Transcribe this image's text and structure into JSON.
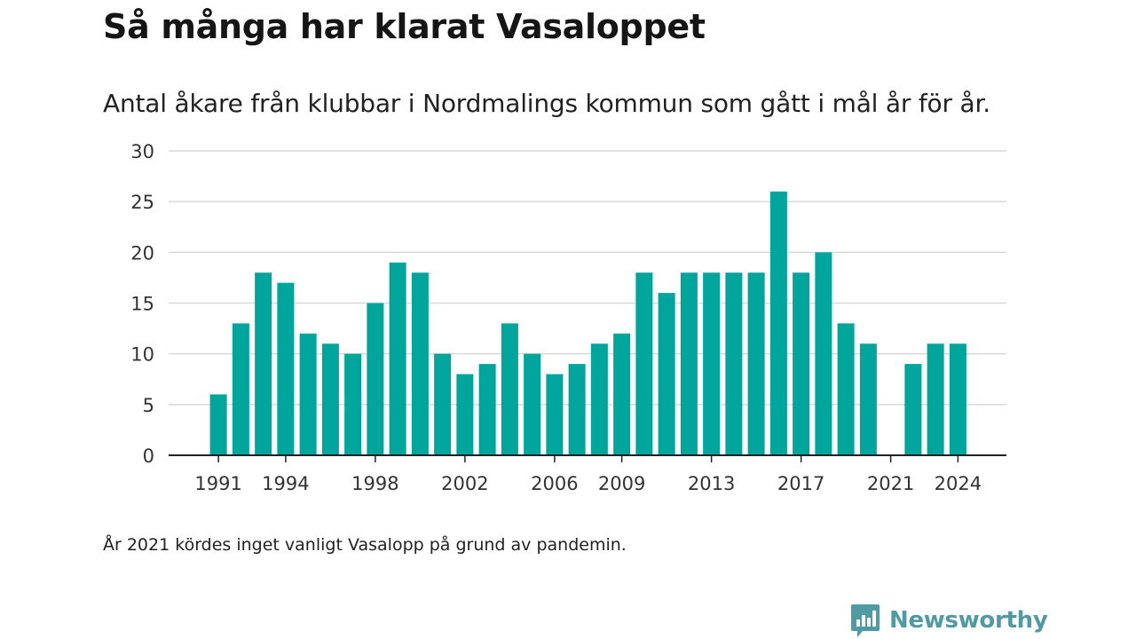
{
  "chart_data": {
    "type": "bar",
    "title": "Så många har klarat Vasaloppet",
    "subtitle": "Antal åkare från klubbar i Nordmalings kommun som gått i mål år för år.",
    "categories": [
      "1991",
      "1992",
      "1993",
      "1994",
      "1995",
      "1996",
      "1997",
      "1998",
      "1999",
      "2000",
      "2001",
      "2002",
      "2003",
      "2004",
      "2005",
      "2006",
      "2007",
      "2008",
      "2009",
      "2010",
      "2011",
      "2012",
      "2013",
      "2014",
      "2015",
      "2016",
      "2017",
      "2018",
      "2019",
      "2020",
      "2021",
      "2022",
      "2023",
      "2024"
    ],
    "values": [
      6,
      13,
      18,
      17,
      12,
      11,
      10,
      15,
      19,
      18,
      10,
      8,
      9,
      13,
      10,
      8,
      9,
      11,
      12,
      18,
      16,
      18,
      18,
      18,
      18,
      26,
      18,
      20,
      13,
      11,
      null,
      9,
      11,
      11
    ],
    "x_tick_labels": [
      "1991",
      "1994",
      "1998",
      "2002",
      "2006",
      "2009",
      "2013",
      "2017",
      "2021",
      "2024"
    ],
    "y_ticks": [
      0,
      5,
      10,
      15,
      20,
      25,
      30
    ],
    "ylim": [
      0,
      30
    ],
    "xlabel": "",
    "ylabel": "",
    "grid": true,
    "bar_color": "#00a59b",
    "note": "År 2021 kördes inget vanligt Vasalopp på grund av pandemin."
  },
  "brand": {
    "name": "Newsworthy",
    "color": "#4f9aa3",
    "icon": "bar-chart-speech-bubble-icon"
  }
}
